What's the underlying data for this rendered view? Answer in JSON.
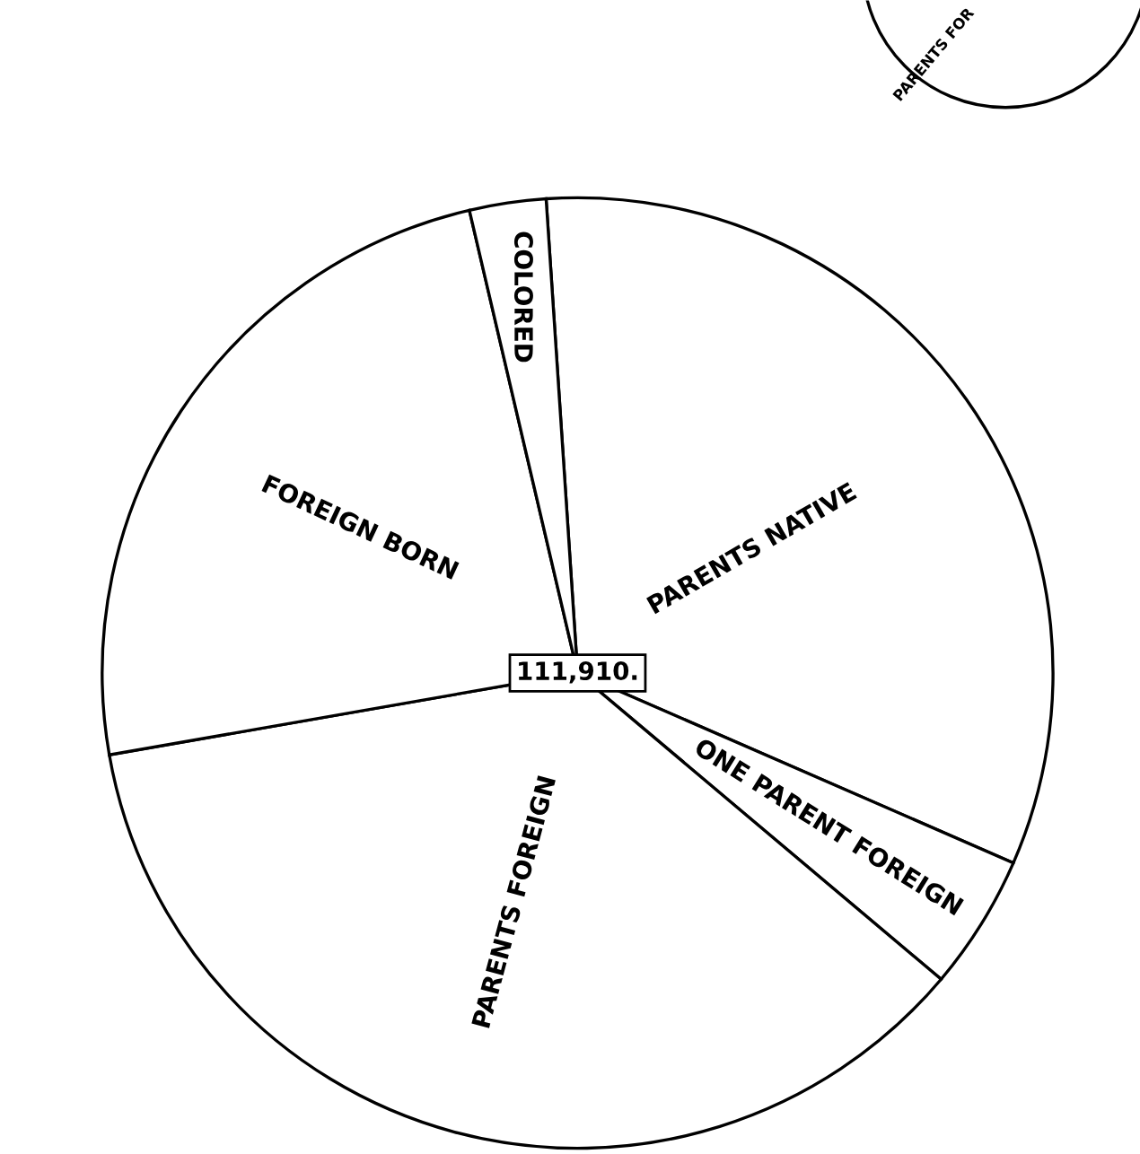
{
  "chart_data": {
    "type": "pie",
    "categories": [
      "PARENTS NATIVE",
      "ONE PARENT FOREIGN",
      "PARENTS FOREIGN",
      "FOREIGN BORN",
      "COLORED"
    ],
    "values": [
      32.6,
      4.6,
      36.1,
      24.1,
      2.6
    ],
    "colors": [
      "#ffffff",
      "#ffffff",
      "#ffffff",
      "#ffffff",
      "#ffffff"
    ],
    "annotations": [
      "111,910.",
      "PARENTS FOR"
    ]
  }
}
